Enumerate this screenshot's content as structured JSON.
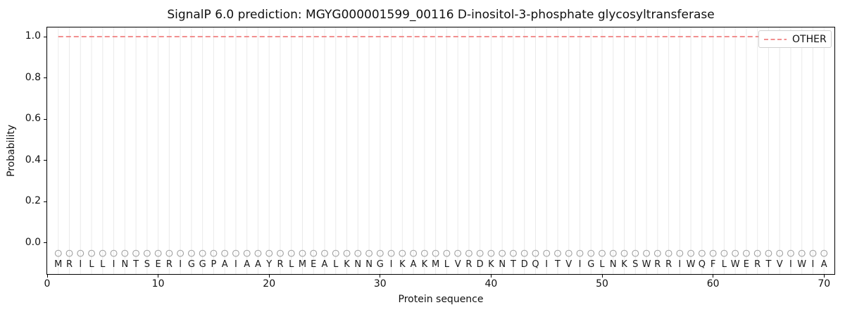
{
  "chart_data": {
    "type": "line",
    "title": "SignalP 6.0 prediction: MGYG000001599_00116 D-inositol-3-phosphate glycosyltransferase",
    "xlabel": "Protein sequence",
    "ylabel": "Probability",
    "xlim": [
      -0.0635,
      71.0
    ],
    "ylim": [
      -0.1536,
      1.0478
    ],
    "x_ticks": [
      {
        "label": "0",
        "value": 0
      },
      {
        "label": "10",
        "value": 10
      },
      {
        "label": "20",
        "value": 20
      },
      {
        "label": "30",
        "value": 30
      },
      {
        "label": "40",
        "value": 40
      },
      {
        "label": "50",
        "value": 50
      },
      {
        "label": "60",
        "value": 60
      },
      {
        "label": "70",
        "value": 70
      }
    ],
    "y_ticks": [
      {
        "label": "0.0",
        "value": 0.0
      },
      {
        "label": "0.2",
        "value": 0.2
      },
      {
        "label": "0.4",
        "value": 0.4
      },
      {
        "label": "0.6",
        "value": 0.6
      },
      {
        "label": "0.8",
        "value": 0.8
      },
      {
        "label": "1.0",
        "value": 1.0
      }
    ],
    "grid": {
      "vertical_line_per_residue": true,
      "horizontal": false
    },
    "legend": {
      "position": "upper-right",
      "entries": [
        {
          "label": "OTHER",
          "color": "#f08080",
          "linestyle": "dashed"
        }
      ]
    },
    "series": [
      {
        "name": "OTHER",
        "color": "#f08080",
        "linestyle": "dashed",
        "x_start": 1,
        "x_end": 70,
        "y_constant": 1.0,
        "note": "constant probability 1.0 across residues 1-70"
      }
    ],
    "sequence": "MRILLINTSERIGGPAIAAYRLMEALKNNGIKAKMLVRDKNTDQITVIGLNKSWRRIWQFLWERTVIWIA",
    "sequence_length": 70,
    "residue_markers": {
      "shape": "open-circle",
      "y": -0.05
    },
    "residue_letters_y": -0.1,
    "colors": {
      "gridline": "#eaeaea",
      "marker_circle": "#a0a0a0",
      "residue_letter": "#1a1a1a",
      "axis_frame": "#000000",
      "other_line": "#f08080"
    }
  }
}
